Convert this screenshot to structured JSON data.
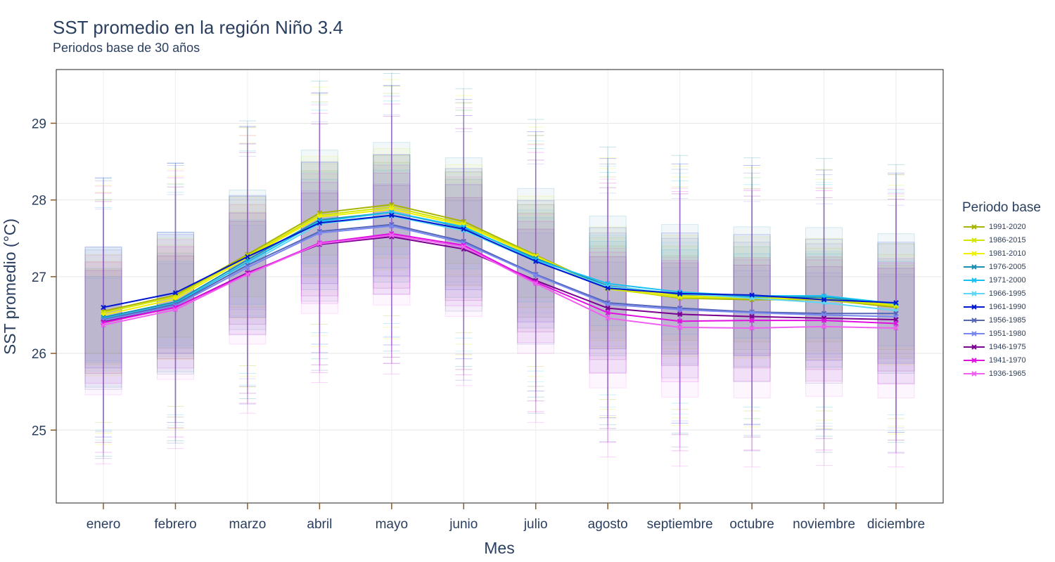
{
  "chart_data": {
    "type": "line",
    "title": "SST promedio en la región Niño 3.4",
    "subtitle": "Periodos base de 30 años",
    "xlabel": "Mes",
    "ylabel": "SST promedio (°C)",
    "ylim": [
      24.05,
      29.7
    ],
    "yticks": [
      25,
      26,
      27,
      28,
      29
    ],
    "grid": true,
    "legend_title": "Periodo base",
    "legend_position": "right",
    "categories": [
      "enero",
      "febrero",
      "marzo",
      "abril",
      "mayo",
      "junio",
      "julio",
      "agosto",
      "septiembre",
      "octubre",
      "noviembre",
      "diciembre"
    ],
    "series": [
      {
        "name": "1991-2020",
        "color": "#a8b400",
        "values": [
          26.55,
          26.76,
          27.29,
          27.83,
          27.94,
          27.72,
          27.28,
          26.85,
          26.72,
          26.7,
          26.7,
          26.6
        ]
      },
      {
        "name": "1986-2015",
        "color": "#d4e600",
        "values": [
          26.53,
          26.74,
          27.27,
          27.8,
          27.91,
          27.69,
          27.27,
          26.84,
          26.73,
          26.72,
          26.7,
          26.62
        ]
      },
      {
        "name": "1981-2010",
        "color": "#eef000",
        "values": [
          26.5,
          26.71,
          27.25,
          27.78,
          27.88,
          27.67,
          27.26,
          26.86,
          26.75,
          26.73,
          26.71,
          26.64
        ]
      },
      {
        "name": "1976-2005",
        "color": "#1a8fb0",
        "values": [
          26.47,
          26.67,
          27.22,
          27.74,
          27.84,
          27.64,
          27.24,
          26.88,
          26.77,
          26.74,
          26.73,
          26.65
        ]
      },
      {
        "name": "1971-2000",
        "color": "#16c0f0",
        "values": [
          26.45,
          26.65,
          27.19,
          27.72,
          27.84,
          27.65,
          27.22,
          26.91,
          26.8,
          26.75,
          26.75,
          26.65
        ]
      },
      {
        "name": "1966-1995",
        "color": "#5ed6f5",
        "values": [
          26.44,
          26.63,
          27.16,
          27.69,
          27.79,
          27.6,
          27.2,
          26.87,
          26.78,
          26.72,
          26.66,
          26.56
        ]
      },
      {
        "name": "1961-1990",
        "color": "#0018d0",
        "values": [
          26.6,
          26.79,
          27.26,
          27.7,
          27.8,
          27.62,
          27.2,
          26.85,
          26.78,
          26.76,
          26.7,
          26.66
        ]
      },
      {
        "name": "1956-1985",
        "color": "#5565b8",
        "values": [
          26.44,
          26.64,
          27.15,
          27.59,
          27.68,
          27.46,
          27.03,
          26.66,
          26.59,
          26.54,
          26.52,
          26.52
        ]
      },
      {
        "name": "1951-1980",
        "color": "#7888f0",
        "values": [
          26.43,
          26.62,
          27.12,
          27.57,
          27.66,
          27.44,
          27.02,
          26.64,
          26.57,
          26.53,
          26.5,
          26.48
        ]
      },
      {
        "name": "1946-1975",
        "color": "#7a0090",
        "values": [
          26.41,
          26.6,
          27.05,
          27.42,
          27.52,
          27.36,
          26.95,
          26.59,
          26.51,
          26.48,
          26.46,
          26.44
        ]
      },
      {
        "name": "1941-1970",
        "color": "#e010e0",
        "values": [
          26.4,
          26.6,
          27.04,
          27.44,
          27.56,
          27.41,
          26.93,
          26.53,
          26.42,
          26.43,
          26.43,
          26.39
        ]
      },
      {
        "name": "1936-1965",
        "color": "#f060f0",
        "values": [
          26.37,
          26.57,
          27.03,
          27.43,
          27.54,
          27.39,
          26.91,
          26.46,
          26.34,
          26.33,
          26.35,
          26.33
        ]
      }
    ]
  }
}
